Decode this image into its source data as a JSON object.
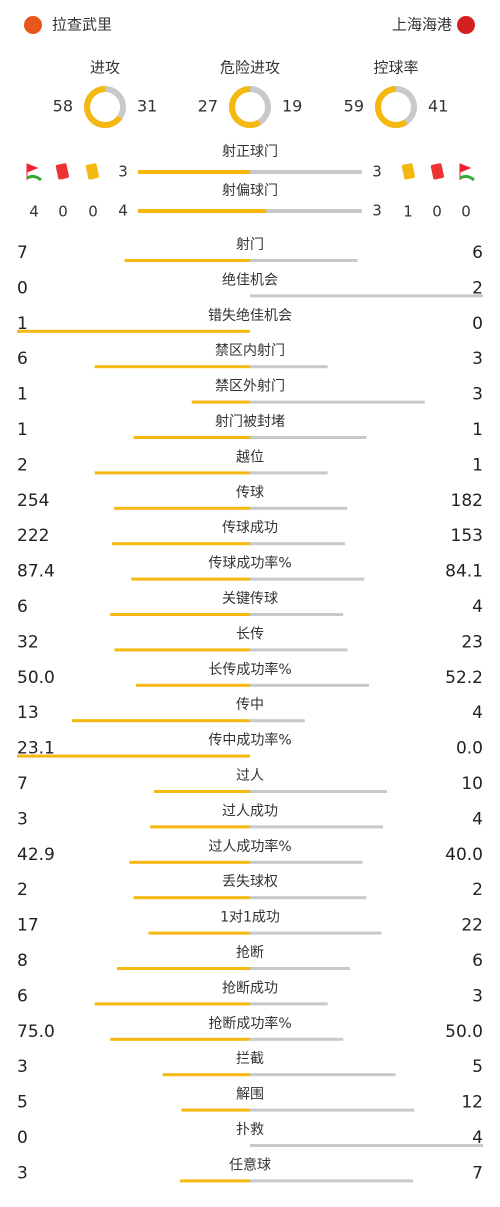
{
  "header": {
    "home": "拉查武里",
    "away": "上海海港"
  },
  "rings": [
    {
      "label": "进攻",
      "home": 58,
      "away": 31
    },
    {
      "label": "危险进攻",
      "home": 27,
      "away": 19
    },
    {
      "label": "控球率",
      "home": 59,
      "away": 41
    }
  ],
  "discipline": {
    "home": {
      "corners": 4,
      "red": 0,
      "yellow": 0
    },
    "away": {
      "yellow": 1,
      "red": 0,
      "corners": 0
    }
  },
  "shots": [
    {
      "label": "射正球门",
      "home": 3,
      "away": 3
    },
    {
      "label": "射偏球门",
      "home": 4,
      "away": 3
    }
  ],
  "stats": [
    {
      "label": "射门",
      "home": 7,
      "away": 6
    },
    {
      "label": "绝佳机会",
      "home": 0,
      "away": 2
    },
    {
      "label": "错失绝佳机会",
      "home": 1,
      "away": 0
    },
    {
      "label": "禁区内射门",
      "home": 6,
      "away": 3
    },
    {
      "label": "禁区外射门",
      "home": 1,
      "away": 3
    },
    {
      "label": "射门被封堵",
      "home": 1,
      "away": 1
    },
    {
      "label": "越位",
      "home": 2,
      "away": 1
    },
    {
      "label": "传球",
      "home": 254,
      "away": 182
    },
    {
      "label": "传球成功",
      "home": 222,
      "away": 153
    },
    {
      "label": "传球成功率%",
      "home": 87.4,
      "away": 84.1
    },
    {
      "label": "关键传球",
      "home": 6,
      "away": 4
    },
    {
      "label": "长传",
      "home": 32,
      "away": 23
    },
    {
      "label": "长传成功率%",
      "home": "50.0",
      "away": 52.2
    },
    {
      "label": "传中",
      "home": 13,
      "away": 4
    },
    {
      "label": "传中成功率%",
      "home": 23.1,
      "away": "0.0"
    },
    {
      "label": "过人",
      "home": 7,
      "away": 10
    },
    {
      "label": "过人成功",
      "home": 3,
      "away": 4
    },
    {
      "label": "过人成功率%",
      "home": 42.9,
      "away": "40.0"
    },
    {
      "label": "丢失球权",
      "home": 2,
      "away": 2
    },
    {
      "label": "1对1成功",
      "home": 17,
      "away": 22
    },
    {
      "label": "抢断",
      "home": 8,
      "away": 6
    },
    {
      "label": "抢断成功",
      "home": 6,
      "away": 3
    },
    {
      "label": "抢断成功率%",
      "home": "75.0",
      "away": "50.0"
    },
    {
      "label": "拦截",
      "home": 3,
      "away": 5
    },
    {
      "label": "解围",
      "home": 5,
      "away": 12
    },
    {
      "label": "扑救",
      "home": 0,
      "away": 4
    },
    {
      "label": "任意球",
      "home": 3,
      "away": 7
    }
  ]
}
